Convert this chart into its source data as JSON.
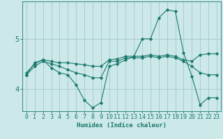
{
  "title": "",
  "xlabel": "Humidex (Indice chaleur)",
  "ylabel": "",
  "bg_color": "#cce8e8",
  "line_color": "#1a7a6e",
  "grid_color": "#aacccc",
  "xlim": [
    -0.5,
    23.5
  ],
  "ylim": [
    3.55,
    5.75
  ],
  "yticks": [
    4,
    5
  ],
  "xticks": [
    0,
    1,
    2,
    3,
    4,
    5,
    6,
    7,
    8,
    9,
    10,
    11,
    12,
    13,
    14,
    15,
    16,
    17,
    18,
    19,
    20,
    21,
    22,
    23
  ],
  "series": [
    {
      "x": [
        0,
        1,
        2,
        3,
        4,
        5,
        6,
        7,
        8,
        9,
        10,
        11,
        12,
        13,
        14,
        15,
        16,
        17,
        18,
        19,
        20,
        21,
        22,
        23
      ],
      "y": [
        4.32,
        4.5,
        4.58,
        4.55,
        4.52,
        4.52,
        4.5,
        4.48,
        4.45,
        4.45,
        4.58,
        4.6,
        4.65,
        4.65,
        4.65,
        4.68,
        4.65,
        4.68,
        4.65,
        4.58,
        4.55,
        4.68,
        4.7,
        4.7
      ]
    },
    {
      "x": [
        0,
        1,
        2,
        3,
        4,
        5,
        6,
        7,
        8,
        9,
        10,
        11,
        12,
        13,
        14,
        15,
        16,
        17,
        18,
        19,
        20,
        21,
        22,
        23
      ],
      "y": [
        4.28,
        4.45,
        4.55,
        4.5,
        4.45,
        4.38,
        4.32,
        4.28,
        4.22,
        4.22,
        4.55,
        4.55,
        4.62,
        4.62,
        4.62,
        4.65,
        4.62,
        4.65,
        4.62,
        4.55,
        4.45,
        4.32,
        4.28,
        4.28
      ]
    },
    {
      "x": [
        0,
        1,
        2,
        3,
        4,
        5,
        6,
        7,
        8,
        9,
        10,
        11,
        12,
        13,
        14,
        15,
        16,
        17,
        18,
        19,
        20,
        21,
        22,
        23
      ],
      "y": [
        4.28,
        4.52,
        4.58,
        4.42,
        4.32,
        4.28,
        4.08,
        3.77,
        3.62,
        3.72,
        4.45,
        4.5,
        4.58,
        4.65,
        5.0,
        5.0,
        5.42,
        5.58,
        5.55,
        4.72,
        4.25,
        3.68,
        3.82,
        3.82
      ]
    }
  ]
}
